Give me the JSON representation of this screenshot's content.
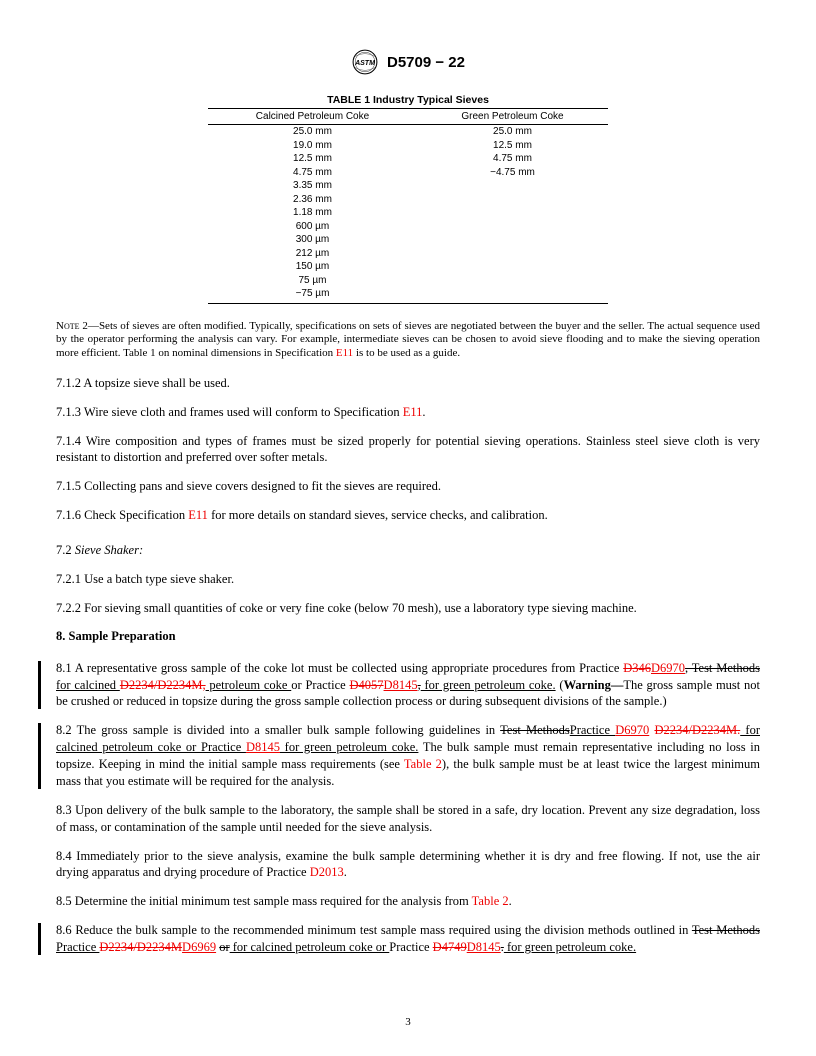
{
  "header": {
    "designation": "D5709 − 22"
  },
  "table1": {
    "title": "TABLE 1 Industry Typical Sieves",
    "col1_header": "Calcined Petroleum Coke",
    "col2_header": "Green Petroleum Coke",
    "rows": [
      {
        "c1": "25.0 mm",
        "c2": "25.0 mm"
      },
      {
        "c1": "19.0 mm",
        "c2": "12.5 mm"
      },
      {
        "c1": "12.5 mm",
        "c2": "4.75 mm"
      },
      {
        "c1": "4.75 mm",
        "c2": "−4.75 mm"
      },
      {
        "c1": "3.35 mm",
        "c2": ""
      },
      {
        "c1": "2.36 mm",
        "c2": ""
      },
      {
        "c1": "1.18 mm",
        "c2": ""
      },
      {
        "c1": "600 µm",
        "c2": ""
      },
      {
        "c1": "300 µm",
        "c2": ""
      },
      {
        "c1": "212 µm",
        "c2": ""
      },
      {
        "c1": "150 µm",
        "c2": ""
      },
      {
        "c1": "75 µm",
        "c2": ""
      },
      {
        "c1": "−75 µm",
        "c2": ""
      }
    ]
  },
  "note2": {
    "label": "Note 2—",
    "text_before": "Sets of sieves are often modified. Typically, specifications on sets of sieves are negotiated between the buyer and the seller. The actual sequence used by the operator performing the analysis can vary. For example, intermediate sieves can be chosen to avoid sieve flooding and to make the sieving operation more efficient. Table 1 on nominal dimensions in Specification ",
    "link1": "E11",
    "text_after": " is to be used as a guide."
  },
  "p712": {
    "num": "7.1.2",
    "text": " A topsize sieve shall be used."
  },
  "p713": {
    "num": "7.1.3",
    "text_before": " Wire sieve cloth and frames used will conform to Specification ",
    "link": "E11",
    "text_after": "."
  },
  "p714": {
    "num": "7.1.4",
    "text": " Wire composition and types of frames must be sized properly for potential sieving operations. Stainless steel sieve cloth is very resistant to distortion and preferred over softer metals."
  },
  "p715": {
    "num": "7.1.5",
    "text": " Collecting pans and sieve covers designed to fit the sieves are required."
  },
  "p716": {
    "num": "7.1.6",
    "text_before": " Check Specification ",
    "link": "E11",
    "text_after": " for more details on standard sieves, service checks, and calibration."
  },
  "p72": {
    "num": "7.2",
    "text": "Sieve Shaker:"
  },
  "p721": {
    "num": "7.2.1",
    "text": " Use a batch type sieve shaker."
  },
  "p722": {
    "num": "7.2.2",
    "text": " For sieving small quantities of coke or very fine coke (below 70 mesh), use a laboratory type sieving machine."
  },
  "sec8": {
    "title": "8.  Sample Preparation"
  },
  "p81": {
    "num": "8.1",
    "t1": " A representative gross sample of the coke lot must be collected using appropriate procedures from Practice ",
    "s1": "D346",
    "u1": "D6970",
    "s2": ", Test Methods",
    "u2": " for calcined ",
    "s3": "D2234/D2234M,",
    "u3": " petroleum coke ",
    "t2": "or Practice ",
    "s4": "D4057",
    "u4": "D8145",
    "s5": ",",
    "u5": " for green petroleum coke.",
    "t3": " (",
    "warn": "Warning—",
    "t4": "The gross sample must not be crushed or reduced in topsize during the gross sample collection process or during subsequent divisions of the sample.)"
  },
  "p82": {
    "num": "8.2",
    "t1": " The gross sample is divided into a smaller bulk sample following guidelines in ",
    "s1": "Test Methods",
    "u1": "Practice ",
    "l1": "D6970",
    "t2": " ",
    "s2": "D2234/D2234M.",
    "u2": " for calcined petroleum coke or Practice ",
    "l2": "D8145",
    "u3": " for green petroleum coke.",
    "t3": " The bulk sample must remain representative including no loss in topsize. Keeping in mind the initial sample mass requirements (see ",
    "l3": "Table 2",
    "t4": "), the bulk sample must be at least twice the largest minimum mass that you estimate will be required for the analysis."
  },
  "p83": {
    "num": "8.3",
    "text": " Upon delivery of the bulk sample to the laboratory, the sample shall be stored in a safe, dry location. Prevent any size degradation, loss of mass, or contamination of the sample until needed for the sieve analysis."
  },
  "p84": {
    "num": "8.4",
    "text_before": " Immediately prior to the sieve analysis, examine the bulk sample determining whether it is dry and free flowing. If not, use the air drying apparatus and drying procedure of Practice ",
    "link": "D2013",
    "text_after": "."
  },
  "p85": {
    "num": "8.5",
    "text_before": " Determine the initial minimum test sample mass required for the analysis from ",
    "link": "Table 2",
    "text_after": "."
  },
  "p86": {
    "num": "8.6",
    "t1": " Reduce the bulk sample to the recommended minimum test sample mass required using the division methods outlined in ",
    "s1": "Test Methods ",
    "u1": "Practice ",
    "s2": "D2234/D2234M",
    "u2": "D6969",
    "t2": " ",
    "s3": "or",
    "u3": " for calcined petroleum coke or ",
    "t3": "Practice ",
    "s4": "D4749",
    "u4": "D8145",
    "s5": ".",
    "u5": " for green petroleum coke."
  },
  "page_num": "3",
  "colors": {
    "link": "#ee0000",
    "text": "#000000",
    "background": "#ffffff"
  }
}
